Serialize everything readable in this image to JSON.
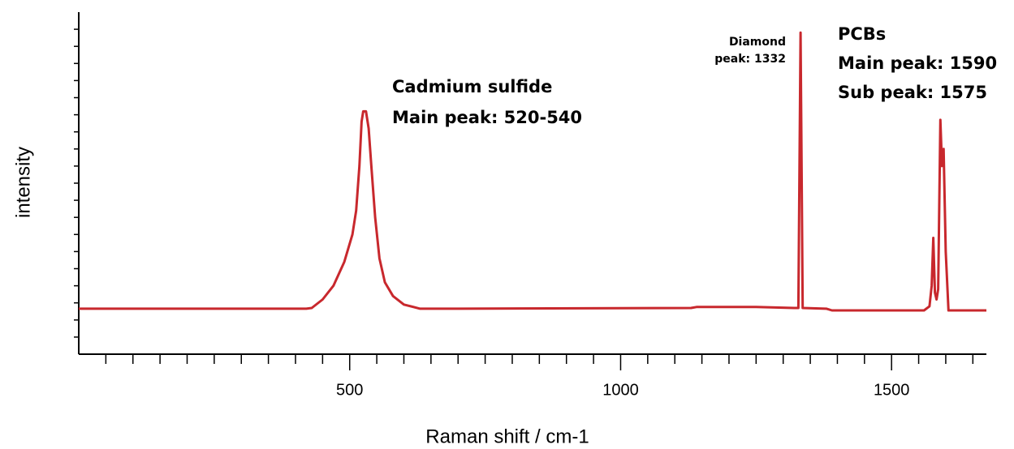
{
  "chart_data": {
    "type": "line",
    "xlabel": "Raman shift / cm-1",
    "ylabel": "intensity",
    "xlim": [
      0,
      1675
    ],
    "ylim": [
      0,
      100
    ],
    "xticks": [
      500,
      1000,
      1500
    ],
    "xminor_ticks": [
      50,
      100,
      150,
      200,
      250,
      300,
      350,
      400,
      450,
      550,
      600,
      650,
      700,
      750,
      800,
      850,
      900,
      950,
      1050,
      1100,
      1150,
      1200,
      1250,
      1300,
      1350,
      1400,
      1450,
      1550,
      1600,
      1650
    ],
    "yminor_ticks": [
      5,
      10,
      15,
      20,
      25,
      30,
      35,
      40,
      45,
      50,
      55,
      60,
      65,
      70,
      75,
      80,
      85,
      90,
      95
    ],
    "grid": false,
    "series": [
      {
        "color": "#c8282d",
        "x": [
          0,
          420,
          430,
          450,
          470,
          490,
          505,
          512,
          518,
          522,
          525,
          530,
          535,
          540,
          547,
          555,
          565,
          580,
          600,
          630,
          700,
          1130,
          1140,
          1250,
          1320,
          1328,
          1332,
          1336,
          1380,
          1390,
          1560,
          1570,
          1574,
          1577,
          1580,
          1583,
          1586,
          1590,
          1593,
          1596,
          1600,
          1605,
          1675
        ],
        "values": [
          13.3,
          13.3,
          13.5,
          16,
          20,
          27,
          35,
          42,
          55,
          68,
          71,
          71,
          66,
          55,
          40,
          28,
          21,
          17,
          14.5,
          13.3,
          13.3,
          13.5,
          13.8,
          13.8,
          13.5,
          13.5,
          94,
          13.5,
          13.3,
          12.8,
          12.8,
          14,
          20,
          34,
          18,
          16,
          19,
          68.5,
          55,
          60,
          30,
          12.8,
          12.8
        ]
      }
    ],
    "annotations": [
      {
        "lines": [
          "Cadmium sulfide",
          "Main peak:  520-540"
        ]
      },
      {
        "lines": [
          "Diamond",
          "peak:  1332"
        ]
      },
      {
        "lines": [
          "PCBs",
          "Main peak:  1590",
          "Sub peak:  1575"
        ]
      }
    ]
  }
}
